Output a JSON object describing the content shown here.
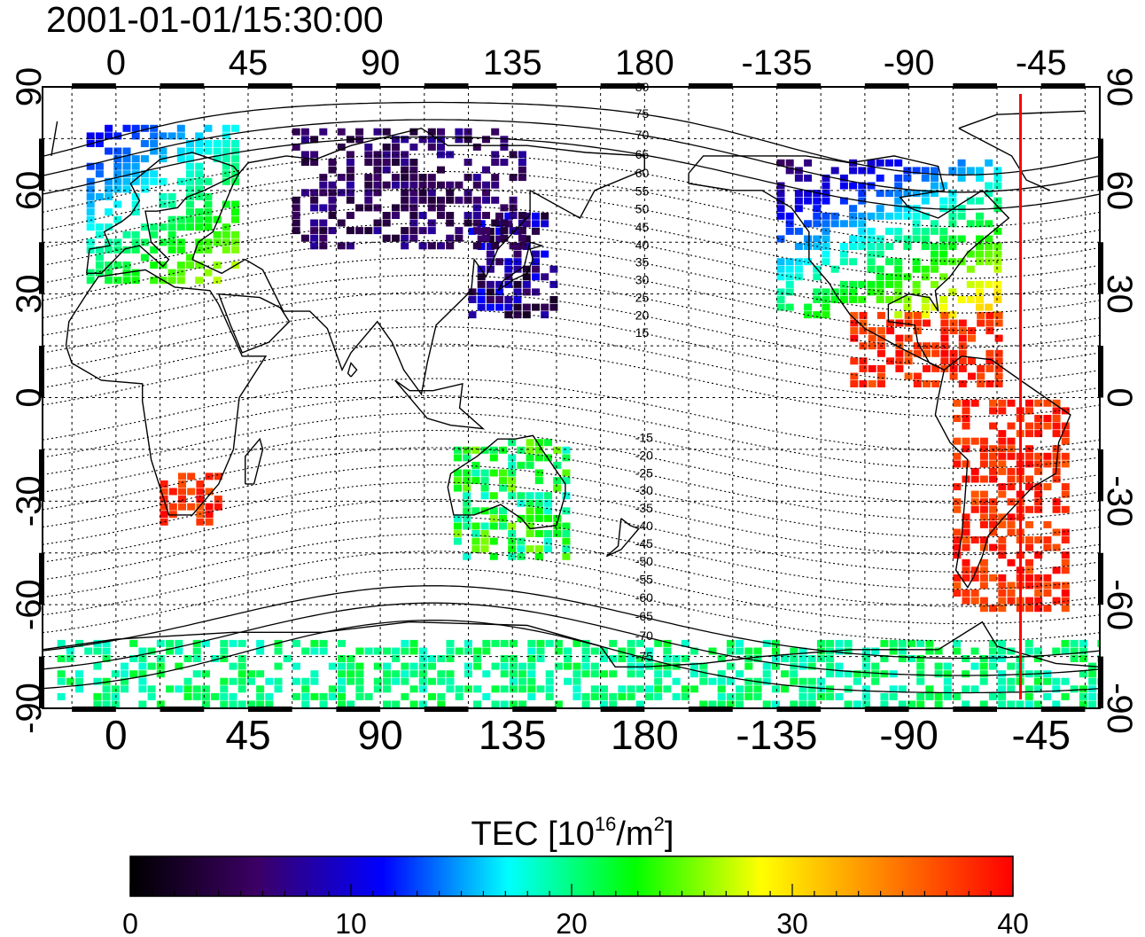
{
  "title": "2001-01-01/15:30:00",
  "map": {
    "top_axis_labels": [
      "0",
      "45",
      "90",
      "135",
      "180",
      "-135",
      "-90",
      "-45"
    ],
    "bottom_axis_labels": [
      "0",
      "45",
      "90",
      "135",
      "180",
      "-135",
      "-90",
      "-45"
    ],
    "left_axis_labels": [
      "90",
      "60",
      "30",
      "0",
      "-30",
      "-60",
      "-90"
    ],
    "right_axis_labels": [
      "90",
      "60",
      "30",
      "0",
      "-30",
      "-60",
      "-90"
    ],
    "longitude_ticks": [
      0,
      45,
      90,
      135,
      180,
      -135,
      -90,
      -45
    ],
    "latitude_ticks": [
      90,
      60,
      30,
      0,
      -30,
      -60,
      -90
    ],
    "lon_range": [
      -25,
      335
    ],
    "lat_range": [
      -90,
      90
    ],
    "magnetic_latitude_labels": [
      "80",
      "75",
      "70",
      "65",
      "60",
      "55",
      "50",
      "45",
      "40",
      "35",
      "30",
      "25",
      "20",
      "15",
      "-15",
      "-20",
      "-25",
      "-30",
      "-35",
      "-40",
      "-45",
      "-50",
      "-55",
      "-60",
      "-65",
      "-70",
      "-75"
    ],
    "magnetic_latitude_values": [
      80,
      75,
      70,
      65,
      60,
      55,
      50,
      45,
      40,
      35,
      30,
      25,
      20,
      15,
      -15,
      -20,
      -25,
      -30,
      -35,
      -40,
      -45,
      -50,
      -55,
      -60,
      -65,
      -70,
      -75
    ],
    "terminator_longitude": -52,
    "terminator_color": "#ff0000"
  },
  "colorbar": {
    "title_main": "TEC  [10",
    "title_sup1": "16",
    "title_mid": "/m",
    "title_sup2": "2",
    "title_end": "]",
    "tick_labels": [
      "0",
      "10",
      "20",
      "30",
      "40"
    ],
    "tick_values": [
      0,
      10,
      20,
      30,
      40
    ],
    "range": [
      0,
      40
    ],
    "colors": [
      "#000000",
      "#3c0064",
      "#0000ff",
      "#00ffff",
      "#00ff00",
      "#ffff00",
      "#ff8000",
      "#ff0000"
    ]
  },
  "tec_regions": [
    {
      "name": "europe",
      "lon": [
        -10,
        40
      ],
      "lat": [
        35,
        80
      ],
      "tec": [
        10,
        28
      ]
    },
    {
      "name": "north-america",
      "lon": [
        -135,
        -60
      ],
      "lat": [
        25,
        70
      ],
      "tec": [
        5,
        32
      ]
    },
    {
      "name": "east-asia",
      "lon": [
        120,
        150
      ],
      "lat": [
        25,
        55
      ],
      "tec": [
        2,
        12
      ]
    },
    {
      "name": "siberia",
      "lon": [
        60,
        140
      ],
      "lat": [
        45,
        80
      ],
      "tec": [
        3,
        8
      ]
    },
    {
      "name": "central-america",
      "lon": [
        -110,
        -60
      ],
      "lat": [
        5,
        25
      ],
      "tec": [
        36,
        40
      ]
    },
    {
      "name": "south-america",
      "lon": [
        -75,
        -35
      ],
      "lat": [
        -60,
        0
      ],
      "tec": [
        36,
        40
      ]
    },
    {
      "name": "southern-africa",
      "lon": [
        15,
        35
      ],
      "lat": [
        -35,
        -20
      ],
      "tec": [
        36,
        40
      ]
    },
    {
      "name": "australia",
      "lon": [
        115,
        155
      ],
      "lat": [
        -45,
        -10
      ],
      "tec": [
        18,
        26
      ]
    },
    {
      "name": "antarctica",
      "lon": [
        -20,
        335
      ],
      "lat": [
        -90,
        -70
      ],
      "tec": [
        18,
        22
      ]
    }
  ]
}
